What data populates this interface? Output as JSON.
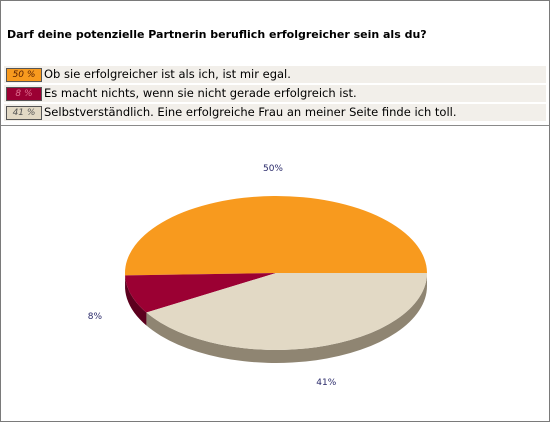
{
  "question": "Darf deine potenzielle Partnerin beruflich erfolgreicher sein als du?",
  "legend": [
    {
      "pct_label": "50 %",
      "text": "Ob sie erfolgreicher ist als ich, ist mir egal.",
      "color": "#f89a1e",
      "text_color": "#5a2000"
    },
    {
      "pct_label": "8 %",
      "text": "Es macht nichts, wenn sie nicht gerade erfolgreich ist.",
      "color": "#9b0033",
      "text_color": "#e07090"
    },
    {
      "pct_label": "41 %",
      "text": "Selbstverständlich. Eine erfolgreiche Frau an meiner Seite finde ich toll.",
      "color": "#e2d9c5",
      "text_color": "#555555"
    }
  ],
  "chart_data": {
    "type": "pie",
    "title": "Darf deine potenzielle Partnerin beruflich erfolgreicher sein als du?",
    "categories": [
      "Ob sie erfolgreicher ist als ich, ist mir egal.",
      "Es macht nichts, wenn sie nicht gerade erfolgreich ist.",
      "Selbstverständlich. Eine erfolgreiche Frau an meiner Seite finde ich toll."
    ],
    "values": [
      50,
      8,
      41
    ],
    "data_labels": [
      "50%",
      "8%",
      "41%"
    ],
    "colors": [
      "#f89a1e",
      "#9b0033",
      "#e2d9c5"
    ],
    "side_colors": [
      "#a8620f",
      "#5c001e",
      "#8f8572"
    ],
    "legend_position": "top"
  }
}
